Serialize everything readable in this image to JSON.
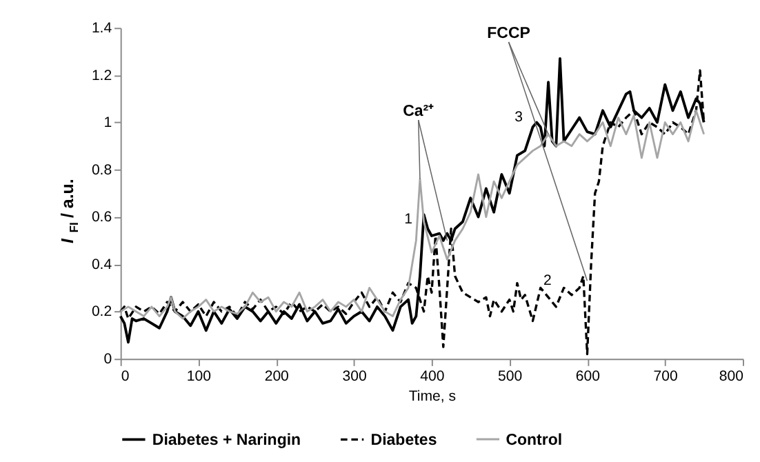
{
  "chart_data": {
    "type": "line",
    "xlabel": "Time, s",
    "ylabel": "I$_{FI}$ / a.u.",
    "xlim": [
      0,
      800
    ],
    "xticks": [
      0,
      100,
      200,
      300,
      400,
      500,
      600,
      700,
      800
    ],
    "ylim": [
      0,
      1.4
    ],
    "yticks": [
      0,
      0.2,
      0.4,
      0.6,
      0.8,
      1,
      1.2,
      1.4
    ],
    "grid": false,
    "legend": "bottom",
    "marker": "none",
    "annotations": [
      {
        "text": "Ca²⁺",
        "x": 385,
        "y": 0.76
      },
      {
        "text": "FCCP",
        "x": 550,
        "y": 0.95
      },
      "1",
      "2",
      "3"
    ],
    "series": [
      {
        "name": "Diabetes + Naringin",
        "color": "#000000",
        "line_style": "solid",
        "x": [
          0,
          5,
          10,
          15,
          20,
          30,
          40,
          50,
          60,
          65,
          70,
          80,
          90,
          100,
          110,
          120,
          130,
          140,
          150,
          160,
          170,
          180,
          190,
          200,
          210,
          220,
          230,
          240,
          250,
          260,
          270,
          280,
          290,
          300,
          310,
          320,
          330,
          340,
          350,
          360,
          370,
          375,
          380,
          385,
          390,
          395,
          400,
          410,
          415,
          420,
          425,
          430,
          440,
          450,
          460,
          470,
          480,
          490,
          500,
          510,
          520,
          530,
          535,
          540,
          545,
          550,
          555,
          560,
          565,
          570,
          580,
          590,
          600,
          610,
          620,
          630,
          640,
          650,
          655,
          660,
          670,
          680,
          690,
          700,
          710,
          720,
          730,
          740,
          745,
          750
        ],
        "values": [
          0.18,
          0.15,
          0.07,
          0.17,
          0.16,
          0.17,
          0.15,
          0.13,
          0.2,
          0.26,
          0.2,
          0.18,
          0.14,
          0.2,
          0.12,
          0.2,
          0.15,
          0.21,
          0.17,
          0.22,
          0.2,
          0.16,
          0.2,
          0.15,
          0.2,
          0.17,
          0.23,
          0.16,
          0.2,
          0.15,
          0.16,
          0.21,
          0.15,
          0.18,
          0.2,
          0.16,
          0.22,
          0.18,
          0.12,
          0.22,
          0.25,
          0.15,
          0.18,
          0.35,
          0.61,
          0.55,
          0.52,
          0.53,
          0.5,
          0.53,
          0.5,
          0.55,
          0.58,
          0.68,
          0.6,
          0.72,
          0.62,
          0.78,
          0.7,
          0.86,
          0.88,
          0.98,
          1.0,
          0.98,
          0.9,
          1.17,
          0.92,
          0.9,
          1.27,
          0.92,
          0.97,
          1.02,
          0.96,
          0.95,
          1.05,
          0.98,
          1.05,
          1.12,
          1.13,
          1.05,
          1.02,
          1.06,
          1.0,
          1.16,
          1.05,
          1.13,
          1.02,
          1.1,
          1.08,
          1.0
        ]
      },
      {
        "name": "Diabetes",
        "color": "#000000",
        "line_style": "dashed",
        "x": [
          0,
          5,
          10,
          20,
          30,
          40,
          50,
          60,
          70,
          80,
          90,
          100,
          110,
          120,
          130,
          140,
          150,
          160,
          170,
          180,
          190,
          200,
          210,
          220,
          230,
          240,
          250,
          260,
          270,
          280,
          290,
          300,
          310,
          320,
          330,
          340,
          350,
          360,
          370,
          380,
          390,
          395,
          400,
          405,
          410,
          415,
          420,
          425,
          430,
          440,
          450,
          460,
          470,
          475,
          480,
          490,
          500,
          505,
          510,
          515,
          520,
          530,
          540,
          550,
          560,
          570,
          580,
          590,
          595,
          600,
          605,
          610,
          615,
          620,
          625,
          630,
          640,
          650,
          660,
          670,
          680,
          690,
          700,
          710,
          720,
          730,
          740,
          745,
          750
        ],
        "values": [
          0.2,
          0.22,
          0.17,
          0.22,
          0.2,
          0.22,
          0.19,
          0.24,
          0.2,
          0.24,
          0.2,
          0.23,
          0.18,
          0.24,
          0.2,
          0.22,
          0.18,
          0.24,
          0.21,
          0.25,
          0.2,
          0.22,
          0.19,
          0.24,
          0.2,
          0.22,
          0.2,
          0.23,
          0.2,
          0.22,
          0.19,
          0.24,
          0.28,
          0.22,
          0.26,
          0.2,
          0.28,
          0.24,
          0.32,
          0.3,
          0.2,
          0.35,
          0.28,
          0.52,
          0.3,
          0.05,
          0.3,
          0.55,
          0.35,
          0.28,
          0.26,
          0.24,
          0.26,
          0.18,
          0.25,
          0.2,
          0.25,
          0.2,
          0.32,
          0.25,
          0.27,
          0.16,
          0.3,
          0.26,
          0.22,
          0.3,
          0.27,
          0.3,
          0.35,
          0.02,
          0.4,
          0.7,
          0.75,
          0.9,
          0.95,
          1.0,
          0.98,
          1.02,
          1.05,
          0.95,
          1.0,
          0.98,
          0.95,
          1.0,
          0.98,
          0.95,
          1.05,
          1.22,
          1.0
        ]
      },
      {
        "name": "Control",
        "color": "#a6a6a6",
        "line_style": "solid",
        "x": [
          0,
          10,
          20,
          30,
          40,
          50,
          60,
          65,
          70,
          80,
          90,
          100,
          110,
          120,
          130,
          140,
          150,
          160,
          170,
          180,
          190,
          200,
          210,
          220,
          230,
          240,
          250,
          260,
          270,
          280,
          290,
          300,
          310,
          320,
          330,
          340,
          350,
          360,
          370,
          380,
          385,
          390,
          400,
          410,
          420,
          430,
          440,
          450,
          460,
          470,
          480,
          490,
          500,
          510,
          520,
          530,
          540,
          550,
          560,
          570,
          580,
          590,
          600,
          610,
          620,
          630,
          640,
          650,
          660,
          670,
          680,
          690,
          700,
          710,
          720,
          730,
          740,
          750
        ],
        "values": [
          0.2,
          0.22,
          0.2,
          0.18,
          0.22,
          0.18,
          0.22,
          0.26,
          0.2,
          0.17,
          0.2,
          0.22,
          0.25,
          0.2,
          0.22,
          0.2,
          0.19,
          0.22,
          0.28,
          0.24,
          0.26,
          0.2,
          0.24,
          0.22,
          0.28,
          0.2,
          0.22,
          0.25,
          0.2,
          0.24,
          0.22,
          0.25,
          0.2,
          0.3,
          0.25,
          0.2,
          0.18,
          0.25,
          0.3,
          0.5,
          0.76,
          0.58,
          0.45,
          0.52,
          0.42,
          0.5,
          0.55,
          0.62,
          0.78,
          0.6,
          0.75,
          0.68,
          0.75,
          0.82,
          0.85,
          0.88,
          0.9,
          0.95,
          0.9,
          0.92,
          0.9,
          0.95,
          0.92,
          0.95,
          1.0,
          0.9,
          1.02,
          0.95,
          1.03,
          0.85,
          1.0,
          0.85,
          1.0,
          0.95,
          1.0,
          0.92,
          1.05,
          0.95
        ]
      }
    ]
  }
}
